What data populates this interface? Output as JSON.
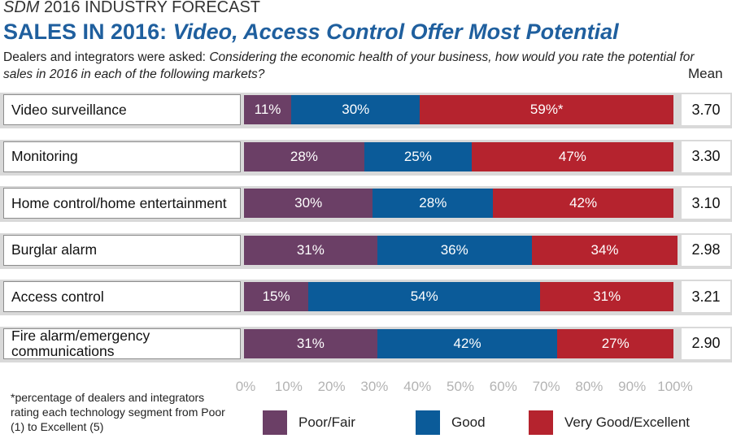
{
  "header": {
    "kicker_brand": "SDM",
    "kicker_rest": " 2016 INDUSTRY FORECAST",
    "headline_a": "SALES IN 2016: ",
    "headline_b": "Video, Access Control Offer Most Potential",
    "question_lead": "Dealers and integrators were asked: ",
    "question_text": "Considering the economic health of your business, how would you rate the potential for sales in 2016 in each of the following markets?"
  },
  "chart_data": {
    "type": "bar",
    "stacked": true,
    "orientation": "horizontal",
    "categories": [
      "Video surveillance",
      "Monitoring",
      "Home control/home entertainment",
      "Burglar alarm",
      "Access control",
      "Fire alarm/emergency\ncommunications"
    ],
    "series": [
      {
        "name": "Poor/Fair",
        "color": "#6b3f66",
        "values": [
          11,
          28,
          30,
          31,
          15,
          31
        ],
        "labels": [
          "11%",
          "28%",
          "30%",
          "31%",
          "15%",
          "31%"
        ]
      },
      {
        "name": "Good",
        "color": "#0b5b99",
        "values": [
          30,
          25,
          28,
          36,
          54,
          42
        ],
        "labels": [
          "30%",
          "25%",
          "28%",
          "36%",
          "54%",
          "42%"
        ]
      },
      {
        "name": "Very Good/Excellent",
        "color": "#b5232e",
        "values": [
          59,
          47,
          42,
          34,
          31,
          27
        ],
        "labels": [
          "59%*",
          "47%",
          "42%",
          "34%",
          "31%",
          "27%"
        ]
      }
    ],
    "mean_header": "Mean",
    "means": [
      "3.70",
      "3.30",
      "3.10",
      "2.98",
      "3.21",
      "2.90"
    ],
    "xlim": [
      0,
      100
    ],
    "x_ticks": [
      "0%",
      "10%",
      "20%",
      "30%",
      "40%",
      "50%",
      "60%",
      "70%",
      "80%",
      "90%",
      "100%"
    ],
    "legend_position": "bottom",
    "footnote": "*percentage of dealers and integrators rating each technology segment from Poor (1) to Excellent (5)"
  }
}
